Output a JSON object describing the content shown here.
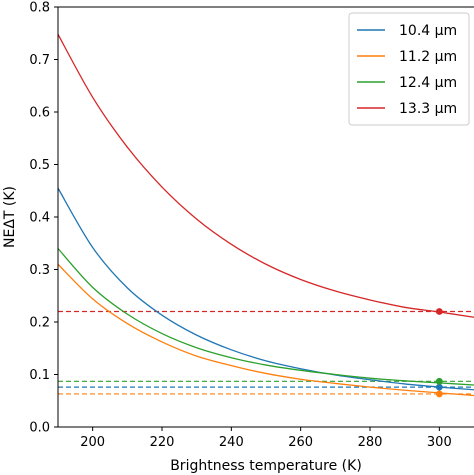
{
  "chart_data": {
    "type": "line",
    "title": "",
    "xlabel": "Brightness temperature (K)",
    "ylabel": "NEΔT (K)",
    "xlim": [
      190,
      310
    ],
    "ylim": [
      0.0,
      0.8
    ],
    "xticks": [
      200,
      220,
      240,
      260,
      280,
      300
    ],
    "yticks": [
      0.0,
      0.1,
      0.2,
      0.3,
      0.4,
      0.5,
      0.6,
      0.7,
      0.8
    ],
    "xtick_labels": [
      "200",
      "220",
      "240",
      "260",
      "280",
      "300"
    ],
    "ytick_labels": [
      "0.0",
      "0.1",
      "0.2",
      "0.3",
      "0.4",
      "0.5",
      "0.6",
      "0.7",
      "0.8"
    ],
    "grid": false,
    "legend_position": "top-right",
    "x": [
      190,
      200,
      210,
      220,
      230,
      240,
      250,
      260,
      270,
      280,
      290,
      300,
      310
    ],
    "series": [
      {
        "name": "10.4 µm",
        "color": "#1f77b4",
        "values": [
          0.455,
          0.342,
          0.265,
          0.213,
          0.175,
          0.147,
          0.126,
          0.111,
          0.099,
          0.09,
          0.082,
          0.076,
          0.071
        ],
        "reference_value": 0.076,
        "marker_x": 300,
        "marker_y": 0.076
      },
      {
        "name": "11.2 µm",
        "color": "#ff7f0e",
        "values": [
          0.31,
          0.244,
          0.197,
          0.162,
          0.135,
          0.117,
          0.102,
          0.091,
          0.083,
          0.076,
          0.07,
          0.065,
          0.06
        ],
        "reference_value": 0.063,
        "marker_x": 300,
        "marker_y": 0.063
      },
      {
        "name": "12.4 µm",
        "color": "#2ca02c",
        "values": [
          0.34,
          0.266,
          0.215,
          0.178,
          0.151,
          0.132,
          0.118,
          0.108,
          0.1,
          0.093,
          0.088,
          0.084,
          0.08
        ],
        "reference_value": 0.087,
        "marker_x": 300,
        "marker_y": 0.087
      },
      {
        "name": "13.3 µm",
        "color": "#d62728",
        "values": [
          0.748,
          0.628,
          0.533,
          0.457,
          0.396,
          0.348,
          0.31,
          0.281,
          0.259,
          0.242,
          0.228,
          0.219,
          0.209
        ],
        "reference_value": 0.22,
        "marker_x": 300,
        "marker_y": 0.22
      }
    ]
  }
}
